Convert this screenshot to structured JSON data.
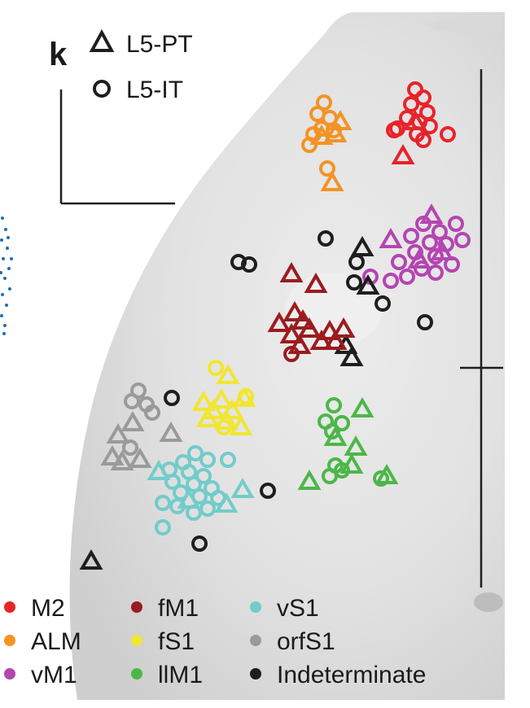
{
  "panel_letter": "k",
  "marker_legend": [
    {
      "shape": "triangle",
      "label": "L5-PT"
    },
    {
      "shape": "circle",
      "label": "L5-IT"
    }
  ],
  "region_legend": [
    {
      "label": "M2",
      "color": "#e8232a"
    },
    {
      "label": "ALM",
      "color": "#f39325"
    },
    {
      "label": "vM1",
      "color": "#b445b1"
    },
    {
      "label": "fM1",
      "color": "#9b1c1f"
    },
    {
      "label": "fS1",
      "color": "#f1e631"
    },
    {
      "label": "llM1",
      "color": "#4cb748"
    },
    {
      "label": "vS1",
      "color": "#72cccb"
    },
    {
      "label": "orfS1",
      "color": "#9a9a9a"
    },
    {
      "label": "Indeterminate",
      "color": "#1e1e1e"
    }
  ]
}
